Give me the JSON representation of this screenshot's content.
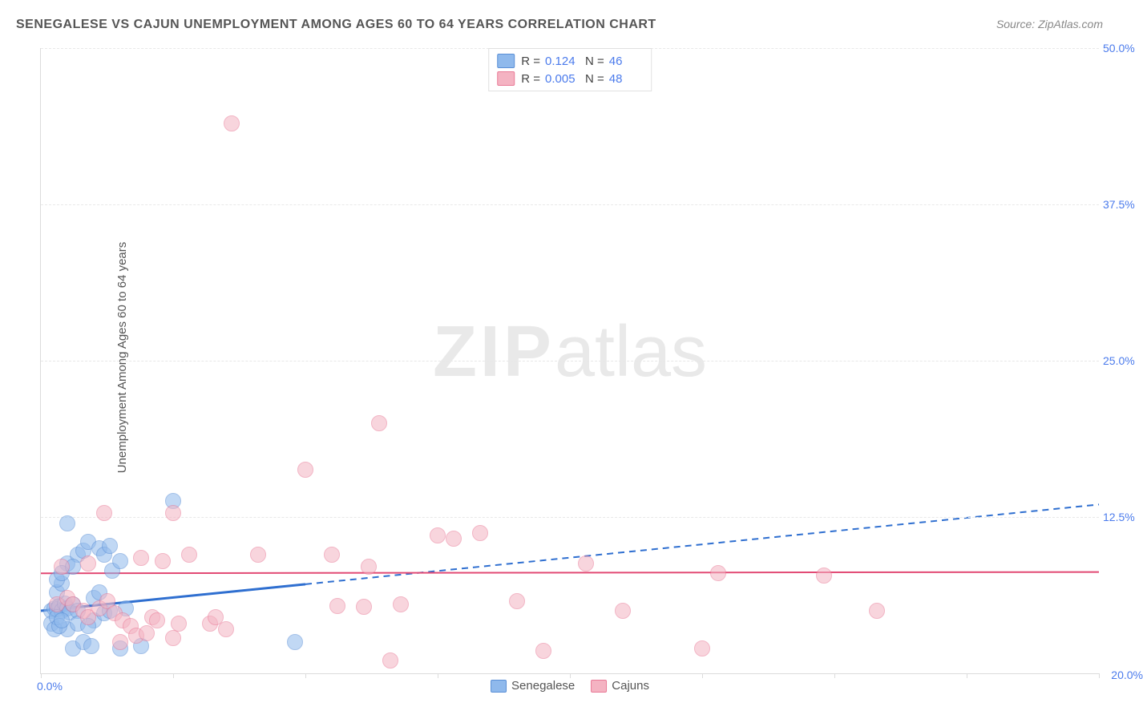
{
  "title": "SENEGALESE VS CAJUN UNEMPLOYMENT AMONG AGES 60 TO 64 YEARS CORRELATION CHART",
  "source": "Source: ZipAtlas.com",
  "y_axis_label": "Unemployment Among Ages 60 to 64 years",
  "watermark_bold": "ZIP",
  "watermark_light": "atlas",
  "chart": {
    "type": "scatter",
    "xlim": [
      0,
      20
    ],
    "ylim": [
      0,
      50
    ],
    "x_ticks": [
      0,
      2.5,
      5,
      7.5,
      10,
      12.5,
      15,
      17.5,
      20
    ],
    "y_ticks": [
      12.5,
      25.0,
      37.5,
      50.0
    ],
    "x_origin_label": "0.0%",
    "x_max_label": "20.0%",
    "y_tick_labels": [
      "12.5%",
      "25.0%",
      "37.5%",
      "50.0%"
    ],
    "background_color": "#ffffff",
    "grid_color": "#e8e8e8",
    "axis_color": "#dcdcdc",
    "tick_label_color": "#4b7bec",
    "point_radius": 9,
    "point_opacity": 0.55,
    "series": [
      {
        "name": "Senegalese",
        "fill": "#8fb9ec",
        "border": "#5a8fd6",
        "R": "0.124",
        "N": "46",
        "trend": {
          "x1": 0,
          "y1": 5.0,
          "x2": 20,
          "y2": 13.5,
          "solid_until_x": 5.0,
          "color": "#2f6fd0",
          "solid_width": 3,
          "dash_width": 2
        },
        "points": [
          {
            "x": 0.2,
            "y": 5.0
          },
          {
            "x": 0.25,
            "y": 5.2
          },
          {
            "x": 0.3,
            "y": 5.1
          },
          {
            "x": 0.35,
            "y": 5.4
          },
          {
            "x": 0.4,
            "y": 5.0
          },
          {
            "x": 0.45,
            "y": 5.6
          },
          {
            "x": 0.5,
            "y": 5.2
          },
          {
            "x": 0.55,
            "y": 4.9
          },
          {
            "x": 0.6,
            "y": 5.5
          },
          {
            "x": 0.7,
            "y": 5.0
          },
          {
            "x": 0.3,
            "y": 6.5
          },
          {
            "x": 0.4,
            "y": 7.2
          },
          {
            "x": 0.5,
            "y": 8.8
          },
          {
            "x": 0.7,
            "y": 9.5
          },
          {
            "x": 0.8,
            "y": 9.8
          },
          {
            "x": 0.9,
            "y": 10.5
          },
          {
            "x": 0.5,
            "y": 12.0
          },
          {
            "x": 1.1,
            "y": 10.0
          },
          {
            "x": 1.2,
            "y": 9.5
          },
          {
            "x": 1.3,
            "y": 10.2
          },
          {
            "x": 1.35,
            "y": 8.2
          },
          {
            "x": 1.0,
            "y": 4.2
          },
          {
            "x": 1.2,
            "y": 4.8
          },
          {
            "x": 1.3,
            "y": 5.0
          },
          {
            "x": 1.6,
            "y": 5.2
          },
          {
            "x": 0.6,
            "y": 2.0
          },
          {
            "x": 0.8,
            "y": 2.5
          },
          {
            "x": 0.95,
            "y": 2.2
          },
          {
            "x": 1.5,
            "y": 2.0
          },
          {
            "x": 1.9,
            "y": 2.2
          },
          {
            "x": 0.5,
            "y": 3.5
          },
          {
            "x": 0.7,
            "y": 4.0
          },
          {
            "x": 0.9,
            "y": 3.8
          },
          {
            "x": 1.0,
            "y": 6.0
          },
          {
            "x": 1.1,
            "y": 6.5
          },
          {
            "x": 0.2,
            "y": 4.0
          },
          {
            "x": 0.25,
            "y": 3.5
          },
          {
            "x": 0.3,
            "y": 4.5
          },
          {
            "x": 0.35,
            "y": 3.8
          },
          {
            "x": 0.4,
            "y": 4.2
          },
          {
            "x": 1.5,
            "y": 9.0
          },
          {
            "x": 2.5,
            "y": 13.8
          },
          {
            "x": 4.8,
            "y": 2.5
          },
          {
            "x": 0.3,
            "y": 7.5
          },
          {
            "x": 0.4,
            "y": 8.0
          },
          {
            "x": 0.6,
            "y": 8.5
          }
        ]
      },
      {
        "name": "Cajuns",
        "fill": "#f4b3c2",
        "border": "#e97a97",
        "R": "0.005",
        "N": "48",
        "trend": {
          "x1": 0,
          "y1": 8.0,
          "x2": 20,
          "y2": 8.1,
          "solid_until_x": 20,
          "color": "#e24a74",
          "solid_width": 2,
          "dash_width": 0
        },
        "points": [
          {
            "x": 0.3,
            "y": 5.5
          },
          {
            "x": 0.5,
            "y": 6.0
          },
          {
            "x": 0.6,
            "y": 5.5
          },
          {
            "x": 0.8,
            "y": 5.0
          },
          {
            "x": 0.9,
            "y": 4.5
          },
          {
            "x": 1.1,
            "y": 5.2
          },
          {
            "x": 1.25,
            "y": 5.8
          },
          {
            "x": 1.4,
            "y": 4.8
          },
          {
            "x": 1.55,
            "y": 4.2
          },
          {
            "x": 1.7,
            "y": 3.8
          },
          {
            "x": 2.1,
            "y": 4.5
          },
          {
            "x": 2.2,
            "y": 4.2
          },
          {
            "x": 2.3,
            "y": 9.0
          },
          {
            "x": 2.6,
            "y": 4.0
          },
          {
            "x": 2.8,
            "y": 9.5
          },
          {
            "x": 3.2,
            "y": 4.0
          },
          {
            "x": 3.3,
            "y": 4.5
          },
          {
            "x": 1.9,
            "y": 9.2
          },
          {
            "x": 0.9,
            "y": 8.8
          },
          {
            "x": 0.4,
            "y": 8.5
          },
          {
            "x": 1.2,
            "y": 12.8
          },
          {
            "x": 2.5,
            "y": 12.8
          },
          {
            "x": 3.6,
            "y": 44.0
          },
          {
            "x": 5.0,
            "y": 16.3
          },
          {
            "x": 4.1,
            "y": 9.5
          },
          {
            "x": 5.5,
            "y": 9.5
          },
          {
            "x": 5.6,
            "y": 5.4
          },
          {
            "x": 6.1,
            "y": 5.3
          },
          {
            "x": 6.2,
            "y": 8.5
          },
          {
            "x": 6.4,
            "y": 20.0
          },
          {
            "x": 6.6,
            "y": 1.0
          },
          {
            "x": 6.8,
            "y": 5.5
          },
          {
            "x": 7.5,
            "y": 11.0
          },
          {
            "x": 7.8,
            "y": 10.8
          },
          {
            "x": 8.3,
            "y": 11.2
          },
          {
            "x": 9.0,
            "y": 5.8
          },
          {
            "x": 9.5,
            "y": 1.8
          },
          {
            "x": 10.3,
            "y": 8.8
          },
          {
            "x": 11.0,
            "y": 5.0
          },
          {
            "x": 12.5,
            "y": 2.0
          },
          {
            "x": 12.8,
            "y": 8.0
          },
          {
            "x": 14.8,
            "y": 7.8
          },
          {
            "x": 15.8,
            "y": 5.0
          },
          {
            "x": 1.5,
            "y": 2.5
          },
          {
            "x": 1.8,
            "y": 3.0
          },
          {
            "x": 2.0,
            "y": 3.2
          },
          {
            "x": 2.5,
            "y": 2.8
          },
          {
            "x": 3.5,
            "y": 3.5
          }
        ]
      }
    ]
  },
  "legend_bottom": [
    {
      "label": "Senegalese",
      "fill": "#8fb9ec",
      "border": "#5a8fd6"
    },
    {
      "label": "Cajuns",
      "fill": "#f4b3c2",
      "border": "#e97a97"
    }
  ],
  "legend_top_labels": {
    "R": "R =",
    "N": "N ="
  }
}
